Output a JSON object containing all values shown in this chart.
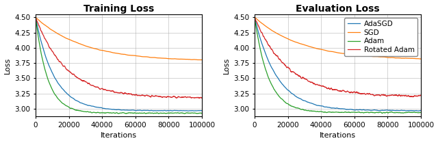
{
  "title_left": "Training Loss",
  "title_right": "Evaluation Loss",
  "xlabel": "Iterations",
  "ylabel": "Loss",
  "ylim": [
    2.875,
    4.55
  ],
  "xlim": [
    0,
    100000
  ],
  "yticks": [
    3.0,
    3.25,
    3.5,
    3.75,
    4.0,
    4.25,
    4.5
  ],
  "xticks": [
    0,
    20000,
    40000,
    60000,
    80000,
    100000
  ],
  "xticklabels": [
    "0",
    "20000",
    "40000",
    "60000",
    "80000",
    "100000"
  ],
  "colors": {
    "AdaSGD": "#1f77b4",
    "SGD": "#ff7f0e",
    "Adam": "#2ca02c",
    "Rotated Adam": "#d62728"
  },
  "legend_labels": [
    "AdaSGD",
    "SGD",
    "Adam",
    "Rotated Adam"
  ],
  "n_points": 1000,
  "figsize": [
    6.4,
    2.09
  ],
  "dpi": 100,
  "title_fontsize": 10,
  "label_fontsize": 8,
  "tick_fontsize": 7.5,
  "legend_fontsize": 7.5
}
